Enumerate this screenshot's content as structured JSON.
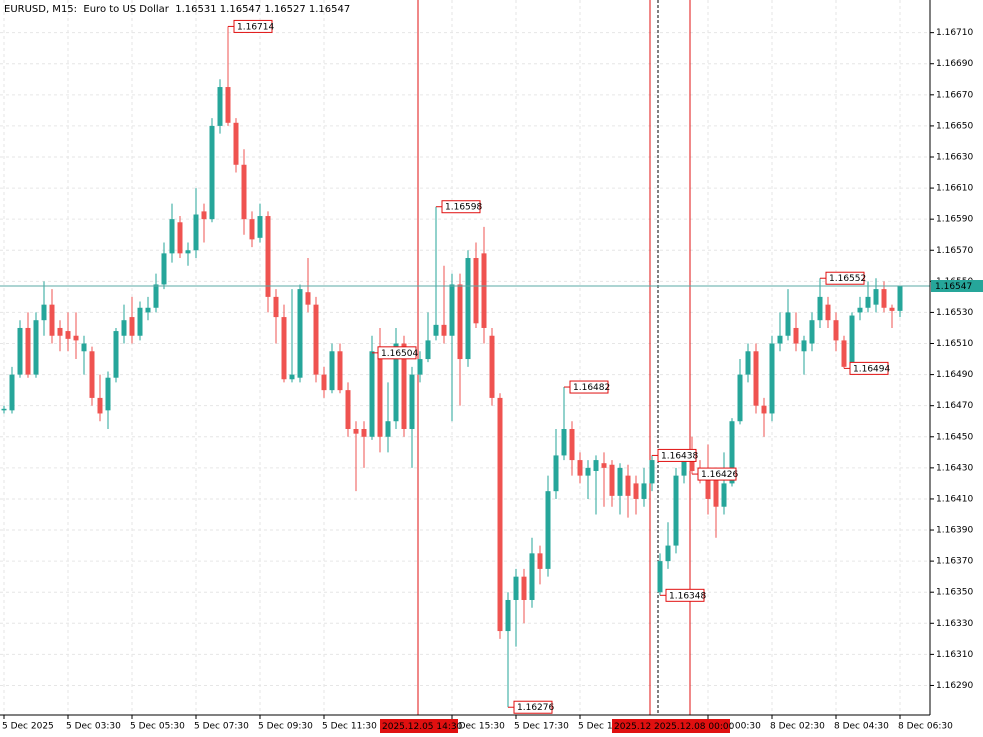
{
  "chart_data": {
    "type": "candlestick",
    "title": "EURUSD, M15:  Euro to US Dollar  1.16531 1.16547 1.16527 1.16547",
    "up_color": "#26a69a",
    "down_color": "#ef5350",
    "marker_color": "#e01010",
    "price_line_color": "#5aa9a6",
    "grid": true,
    "ylim": [
      1.16271,
      1.16731
    ],
    "yticks": [
      {
        "value": 1.1629,
        "label": "1.16290"
      },
      {
        "value": 1.1631,
        "label": "1.16310"
      },
      {
        "value": 1.1633,
        "label": "1.16330"
      },
      {
        "value": 1.1635,
        "label": "1.16350"
      },
      {
        "value": 1.1637,
        "label": "1.16370"
      },
      {
        "value": 1.1639,
        "label": "1.16390"
      },
      {
        "value": 1.1641,
        "label": "1.16410"
      },
      {
        "value": 1.1643,
        "label": "1.16430"
      },
      {
        "value": 1.1645,
        "label": "1.16450"
      },
      {
        "value": 1.1647,
        "label": "1.16470"
      },
      {
        "value": 1.1649,
        "label": "1.16490"
      },
      {
        "value": 1.1651,
        "label": "1.16510"
      },
      {
        "value": 1.1653,
        "label": "1.16530"
      },
      {
        "value": 1.1655,
        "label": "1.16550"
      },
      {
        "value": 1.1657,
        "label": "1.16570"
      },
      {
        "value": 1.1659,
        "label": "1.16590"
      },
      {
        "value": 1.1661,
        "label": "1.16610"
      },
      {
        "value": 1.1663,
        "label": "1.16630"
      },
      {
        "value": 1.1665,
        "label": "1.16650"
      },
      {
        "value": 1.1667,
        "label": "1.16670"
      },
      {
        "value": 1.1669,
        "label": "1.16690"
      },
      {
        "value": 1.1671,
        "label": "1.16710"
      }
    ],
    "xticks": [
      {
        "value": 0,
        "label": "5 Dec 2025"
      },
      {
        "value": 8,
        "label": "5 Dec 03:30"
      },
      {
        "value": 16,
        "label": "5 Dec 05:30"
      },
      {
        "value": 24,
        "label": "5 Dec 07:30"
      },
      {
        "value": 32,
        "label": "5 Dec 09:30"
      },
      {
        "value": 40,
        "label": "5 Dec 11:30"
      },
      {
        "value": 56,
        "label": "5 Dec 15:30"
      },
      {
        "value": 64,
        "label": "5 Dec 17:30"
      },
      {
        "value": 72,
        "label": "5 Dec 19:30"
      },
      {
        "value": 88,
        "label": "8 Dec 00:30"
      },
      {
        "value": 96,
        "label": "8 Dec 02:30"
      },
      {
        "value": 104,
        "label": "8 Dec 04:30"
      },
      {
        "value": 112,
        "label": "8 Dec 06:30"
      }
    ],
    "open": [
      1.16467,
      1.16467,
      1.1649,
      1.1652,
      1.1649,
      1.16525,
      1.16535,
      1.1652,
      1.16518,
      1.16515,
      1.16505,
      1.16505,
      1.16475,
      1.16467,
      1.16488,
      1.16515,
      1.16527,
      1.16515,
      1.1653,
      1.16533,
      1.16548,
      1.16568,
      1.16588,
      1.16568,
      1.1657,
      1.16595,
      1.1659,
      1.1665,
      1.16675,
      1.16652,
      1.16625,
      1.1659,
      1.16578,
      1.16592,
      1.1654,
      1.16527,
      1.16487,
      1.16488,
      1.16543,
      1.16535,
      1.1649,
      1.1648,
      1.16505,
      1.1648,
      1.16455,
      1.16455,
      1.1645,
      1.16505,
      1.1645,
      1.1646,
      1.1651,
      1.16455,
      1.1649,
      1.165,
      1.16515,
      1.16522,
      1.16515,
      1.16548,
      1.165,
      1.16565,
      1.16568,
      1.16515,
      1.16475,
      1.16325,
      1.16345,
      1.1636,
      1.16345,
      1.16375,
      1.16365,
      1.16415,
      1.16438,
      1.16455,
      1.16435,
      1.16425,
      1.16428,
      1.16433,
      1.16432,
      1.16412,
      1.16425,
      1.1642,
      1.1641,
      1.1642,
      1.1635,
      1.1637,
      1.1638,
      1.16425,
      1.16442,
      1.1643,
      1.16425,
      1.16425,
      1.16405,
      1.1642,
      1.1646,
      1.1649,
      1.16505,
      1.1647,
      1.16465,
      1.1651,
      1.16515,
      1.1652,
      1.16505,
      1.1651,
      1.16525,
      1.16535,
      1.16525,
      1.16512,
      1.16495,
      1.1653,
      1.16533,
      1.16535,
      1.16545,
      1.16533,
      1.16531
    ],
    "high": [
      1.1647,
      1.16495,
      1.16525,
      1.1653,
      1.1653,
      1.1655,
      1.16545,
      1.16525,
      1.1653,
      1.1653,
      1.16515,
      1.16508,
      1.1649,
      1.16492,
      1.1652,
      1.16535,
      1.1654,
      1.16537,
      1.1654,
      1.16555,
      1.16575,
      1.166,
      1.16592,
      1.16575,
      1.1661,
      1.166,
      1.16655,
      1.1668,
      1.16714,
      1.16655,
      1.16635,
      1.16595,
      1.166,
      1.16595,
      1.16545,
      1.16535,
      1.16545,
      1.16548,
      1.16565,
      1.1654,
      1.16495,
      1.1651,
      1.1651,
      1.16485,
      1.1646,
      1.1646,
      1.16515,
      1.1652,
      1.16485,
      1.1652,
      1.16515,
      1.16495,
      1.16505,
      1.1653,
      1.16598,
      1.1656,
      1.16555,
      1.16555,
      1.1657,
      1.16575,
      1.16585,
      1.1652,
      1.16478,
      1.1635,
      1.16365,
      1.16365,
      1.16385,
      1.1638,
      1.16425,
      1.16455,
      1.16482,
      1.1646,
      1.1644,
      1.16435,
      1.16438,
      1.1644,
      1.16435,
      1.16433,
      1.16432,
      1.16425,
      1.1643,
      1.16438,
      1.16375,
      1.16395,
      1.1643,
      1.1644,
      1.1645,
      1.16435,
      1.16445,
      1.1643,
      1.1644,
      1.16462,
      1.165,
      1.1651,
      1.1651,
      1.16475,
      1.16515,
      1.1653,
      1.16545,
      1.1653,
      1.16515,
      1.1653,
      1.16552,
      1.1654,
      1.1653,
      1.16515,
      1.1653,
      1.1654,
      1.1655,
      1.16552,
      1.1655,
      1.16535,
      1.16547
    ],
    "low": [
      1.16465,
      1.16465,
      1.16488,
      1.16488,
      1.16488,
      1.16515,
      1.1651,
      1.16505,
      1.16505,
      1.165,
      1.1649,
      1.1647,
      1.1646,
      1.16455,
      1.16485,
      1.1651,
      1.1651,
      1.16512,
      1.16525,
      1.1653,
      1.16545,
      1.16562,
      1.16565,
      1.1656,
      1.16565,
      1.16575,
      1.16588,
      1.16645,
      1.1665,
      1.1662,
      1.1658,
      1.16572,
      1.16575,
      1.1653,
      1.1651,
      1.16485,
      1.16485,
      1.16485,
      1.1653,
      1.16485,
      1.16475,
      1.16478,
      1.16478,
      1.1645,
      1.16415,
      1.1643,
      1.16448,
      1.1644,
      1.1644,
      1.16455,
      1.1645,
      1.1643,
      1.16485,
      1.16498,
      1.16512,
      1.1651,
      1.1646,
      1.1647,
      1.16495,
      1.1652,
      1.1651,
      1.1647,
      1.1632,
      1.16276,
      1.16315,
      1.1633,
      1.1634,
      1.16355,
      1.1636,
      1.1641,
      1.16435,
      1.16425,
      1.1642,
      1.1641,
      1.164,
      1.16405,
      1.16405,
      1.164,
      1.16398,
      1.164,
      1.16405,
      1.16415,
      1.16348,
      1.16365,
      1.16375,
      1.1642,
      1.16426,
      1.1642,
      1.164,
      1.16385,
      1.164,
      1.16418,
      1.16458,
      1.16485,
      1.16465,
      1.1645,
      1.1646,
      1.16505,
      1.16512,
      1.16505,
      1.1649,
      1.16505,
      1.1652,
      1.1652,
      1.16505,
      1.16494,
      1.1649,
      1.16525,
      1.1653,
      1.1653,
      1.1653,
      1.1652,
      1.16527
    ],
    "close": [
      1.16468,
      1.1649,
      1.1652,
      1.1649,
      1.16525,
      1.16535,
      1.16515,
      1.16515,
      1.16513,
      1.16512,
      1.1651,
      1.16475,
      1.16465,
      1.16488,
      1.16518,
      1.16525,
      1.16515,
      1.16533,
      1.16533,
      1.16548,
      1.16568,
      1.1659,
      1.16568,
      1.1657,
      1.16593,
      1.1659,
      1.1665,
      1.16675,
      1.16652,
      1.16625,
      1.1659,
      1.16577,
      1.16592,
      1.1654,
      1.16527,
      1.16487,
      1.1649,
      1.16545,
      1.16535,
      1.1649,
      1.1648,
      1.16505,
      1.1648,
      1.16455,
      1.16452,
      1.1645,
      1.16505,
      1.1645,
      1.1646,
      1.1651,
      1.16455,
      1.1649,
      1.165,
      1.16512,
      1.16522,
      1.16515,
      1.16548,
      1.165,
      1.16565,
      1.16523,
      1.1652,
      1.16475,
      1.16325,
      1.16345,
      1.1636,
      1.16345,
      1.16375,
      1.16365,
      1.16415,
      1.16438,
      1.16455,
      1.16435,
      1.16425,
      1.1643,
      1.16435,
      1.1643,
      1.16412,
      1.1643,
      1.16412,
      1.1641,
      1.1642,
      1.16435,
      1.1637,
      1.1638,
      1.16425,
      1.16438,
      1.16428,
      1.16425,
      1.1641,
      1.16405,
      1.1642,
      1.1646,
      1.1649,
      1.16505,
      1.1647,
      1.16465,
      1.1651,
      1.16515,
      1.1653,
      1.1651,
      1.16512,
      1.16525,
      1.1654,
      1.16525,
      1.16512,
      1.16495,
      1.16528,
      1.16533,
      1.1654,
      1.16545,
      1.16533,
      1.16531,
      1.16547
    ],
    "annotations": [
      {
        "candle": 28,
        "price": 1.16714
      },
      {
        "candle": 54,
        "price": 1.16598
      },
      {
        "candle": 46,
        "price": 1.16504
      },
      {
        "candle": 70,
        "price": 1.16482
      },
      {
        "candle": 63,
        "price": 1.16276
      },
      {
        "candle": 81,
        "price": 1.16438
      },
      {
        "candle": 82,
        "price": 1.16348
      },
      {
        "candle": 86,
        "price": 1.16426
      },
      {
        "candle": 102,
        "price": 1.16552
      },
      {
        "candle": 105,
        "price": 1.16494
      }
    ],
    "vlines": [
      {
        "candle": 52,
        "label": "2025.12.05 14:30"
      },
      {
        "candle": 81,
        "label": "2025.12.0"
      },
      {
        "candle": 86,
        "label": "2025.12.08 00:00"
      }
    ],
    "separators": [
      82
    ],
    "current_price": 1.16547
  }
}
